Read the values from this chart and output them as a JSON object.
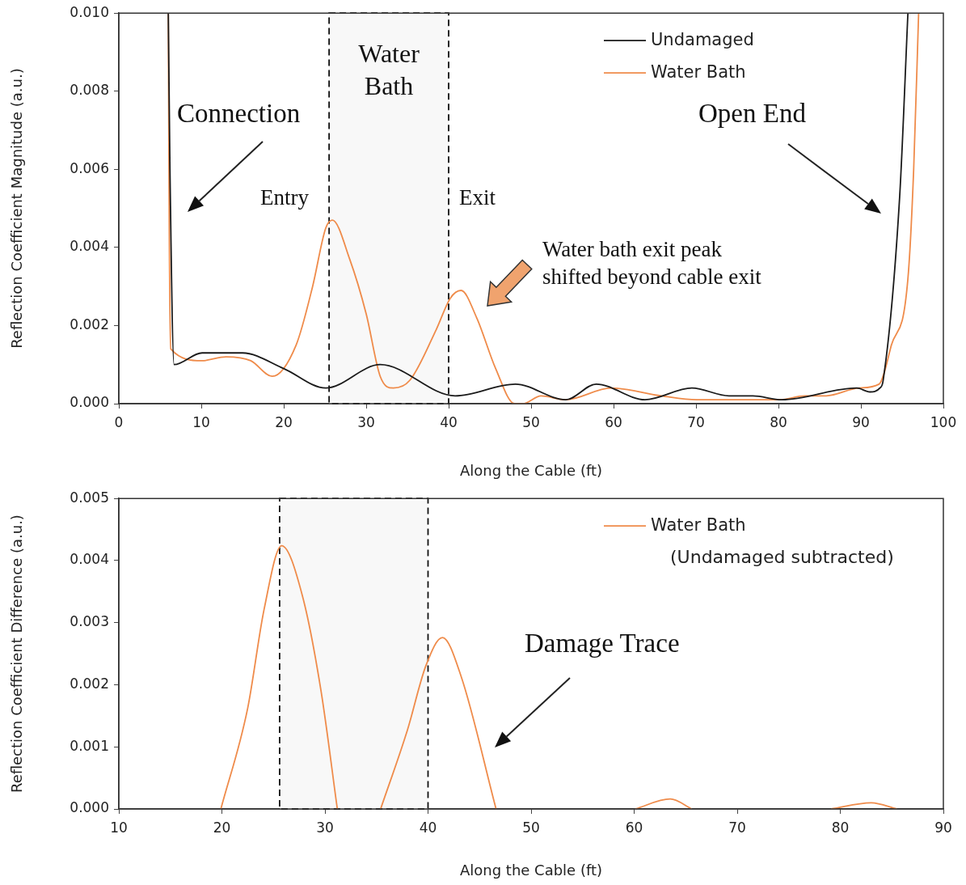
{
  "chart_data": [
    {
      "type": "line",
      "xlabel": "Along the Cable (ft)",
      "ylabel": "Reflection Coefficient Magnitude (a.u.)",
      "xlim": [
        0,
        100
      ],
      "xticks": [
        0,
        10,
        20,
        30,
        40,
        50,
        60,
        70,
        80,
        90,
        100
      ],
      "ylim": [
        0,
        0.01
      ],
      "yticks": [
        {
          "value": 0,
          "label": "0.000"
        },
        {
          "value": 0.002,
          "label": "0.002"
        },
        {
          "value": 0.004,
          "label": "0.004"
        },
        {
          "value": 0.006,
          "label": "0.006"
        },
        {
          "value": 0.008,
          "label": "0.008"
        },
        {
          "value": 0.01,
          "label": "0.010"
        }
      ],
      "grid": false,
      "legend": "top right",
      "marker": "none",
      "line_style": "solid",
      "bands": [
        {
          "axis": "x",
          "from": 25.5,
          "to": 40,
          "label": "Water Bath",
          "color": "#f8f8f8"
        }
      ],
      "annotations": [
        "Connection",
        "Entry",
        "Exit",
        "Open End",
        "Water bath exit peak shifted beyond cable exit"
      ],
      "series": [
        {
          "name": "Undamaged",
          "color": "#1a1a1a",
          "x": [
            6.0,
            6.2,
            6.7,
            10.1,
            15,
            20,
            25.1,
            31.7,
            40.8,
            48.1,
            54.2,
            57.9,
            63.8,
            69.5,
            74,
            76.9,
            80.4,
            89.5,
            91.1,
            92.3,
            92.7,
            94.7,
            95.7
          ],
          "values": [
            0.01,
            0.006,
            0.001,
            0.0013,
            0.0013,
            0.0009,
            0.0004,
            0.001,
            0.0002,
            0.0005,
            0.0001,
            0.0005,
            0.0001,
            0.0004,
            0.0002,
            0.0002,
            0.0001,
            0.0004,
            0.0003,
            0.0004,
            0.0006,
            0.0053,
            0.01
          ]
        },
        {
          "name": "Water Bath",
          "color": "#ef8b4a",
          "x": [
            6.0,
            6.1,
            6.3,
            10.1,
            13,
            16,
            18.6,
            21.5,
            23.5,
            25.1,
            25.9,
            28,
            30,
            31.7,
            33.3,
            35.3,
            38.5,
            40.2,
            41.5,
            43.4,
            45.7,
            48,
            49,
            51.2,
            54.2,
            59.7,
            65.8,
            70.1,
            80.1,
            83.2,
            85.8,
            89.7,
            92.2,
            93.7,
            95.7,
            96.4,
            97.0
          ],
          "values": [
            0.01,
            0.005,
            0.0014,
            0.0011,
            0.0012,
            0.0011,
            0.0007,
            0.0015,
            0.003,
            0.0045,
            0.0047,
            0.0037,
            0.0023,
            0.0007,
            0.0004,
            0.0006,
            0.0019,
            0.0027,
            0.0029,
            0.0022,
            0.0009,
            0.0,
            0.0,
            0.0002,
            0.0001,
            0.0004,
            0.0002,
            0.0001,
            0.0001,
            0.0002,
            0.0002,
            0.0004,
            0.0005,
            0.0015,
            0.0032,
            0.006,
            0.01
          ]
        }
      ]
    },
    {
      "type": "line",
      "xlabel": "Along the Cable (ft)",
      "ylabel": "Reflection Coefficient Difference (a.u.)",
      "xlim": [
        10,
        90
      ],
      "xticks": [
        10,
        20,
        30,
        40,
        50,
        60,
        70,
        80,
        90
      ],
      "ylim": [
        0,
        0.005
      ],
      "yticks": [
        {
          "value": 0,
          "label": "0.000"
        },
        {
          "value": 0.001,
          "label": "0.001"
        },
        {
          "value": 0.002,
          "label": "0.002"
        },
        {
          "value": 0.003,
          "label": "0.003"
        },
        {
          "value": 0.004,
          "label": "0.004"
        },
        {
          "value": 0.005,
          "label": "0.005"
        }
      ],
      "grid": false,
      "legend": "top right",
      "marker": "none",
      "line_style": "solid",
      "bands": [
        {
          "axis": "x",
          "from": 25.6,
          "to": 40,
          "color": "#f8f8f8"
        }
      ],
      "annotations": [
        "(Undamaged subtracted)",
        "Damage Trace"
      ],
      "series": [
        {
          "name": "Water Bath",
          "color": "#ef8b4a",
          "x": [
            19.9,
            22.5,
            24.1,
            25.8,
            27.8,
            29.6,
            31.2,
            33.3,
            35.4,
            38,
            39.8,
            41.4,
            43.2,
            46.6,
            53.3,
            60.1,
            63.5,
            65.6,
            72.3,
            79.1,
            83.0,
            85.5
          ],
          "values": [
            0,
            0.00162,
            0.00322,
            0.00424,
            0.00344,
            0.00192,
            0,
            null,
            0,
            0.00127,
            0.00231,
            0.00276,
            0.00214,
            0,
            null,
            0,
            0.00016,
            0,
            null,
            0,
            0.0001,
            0
          ]
        }
      ]
    }
  ]
}
